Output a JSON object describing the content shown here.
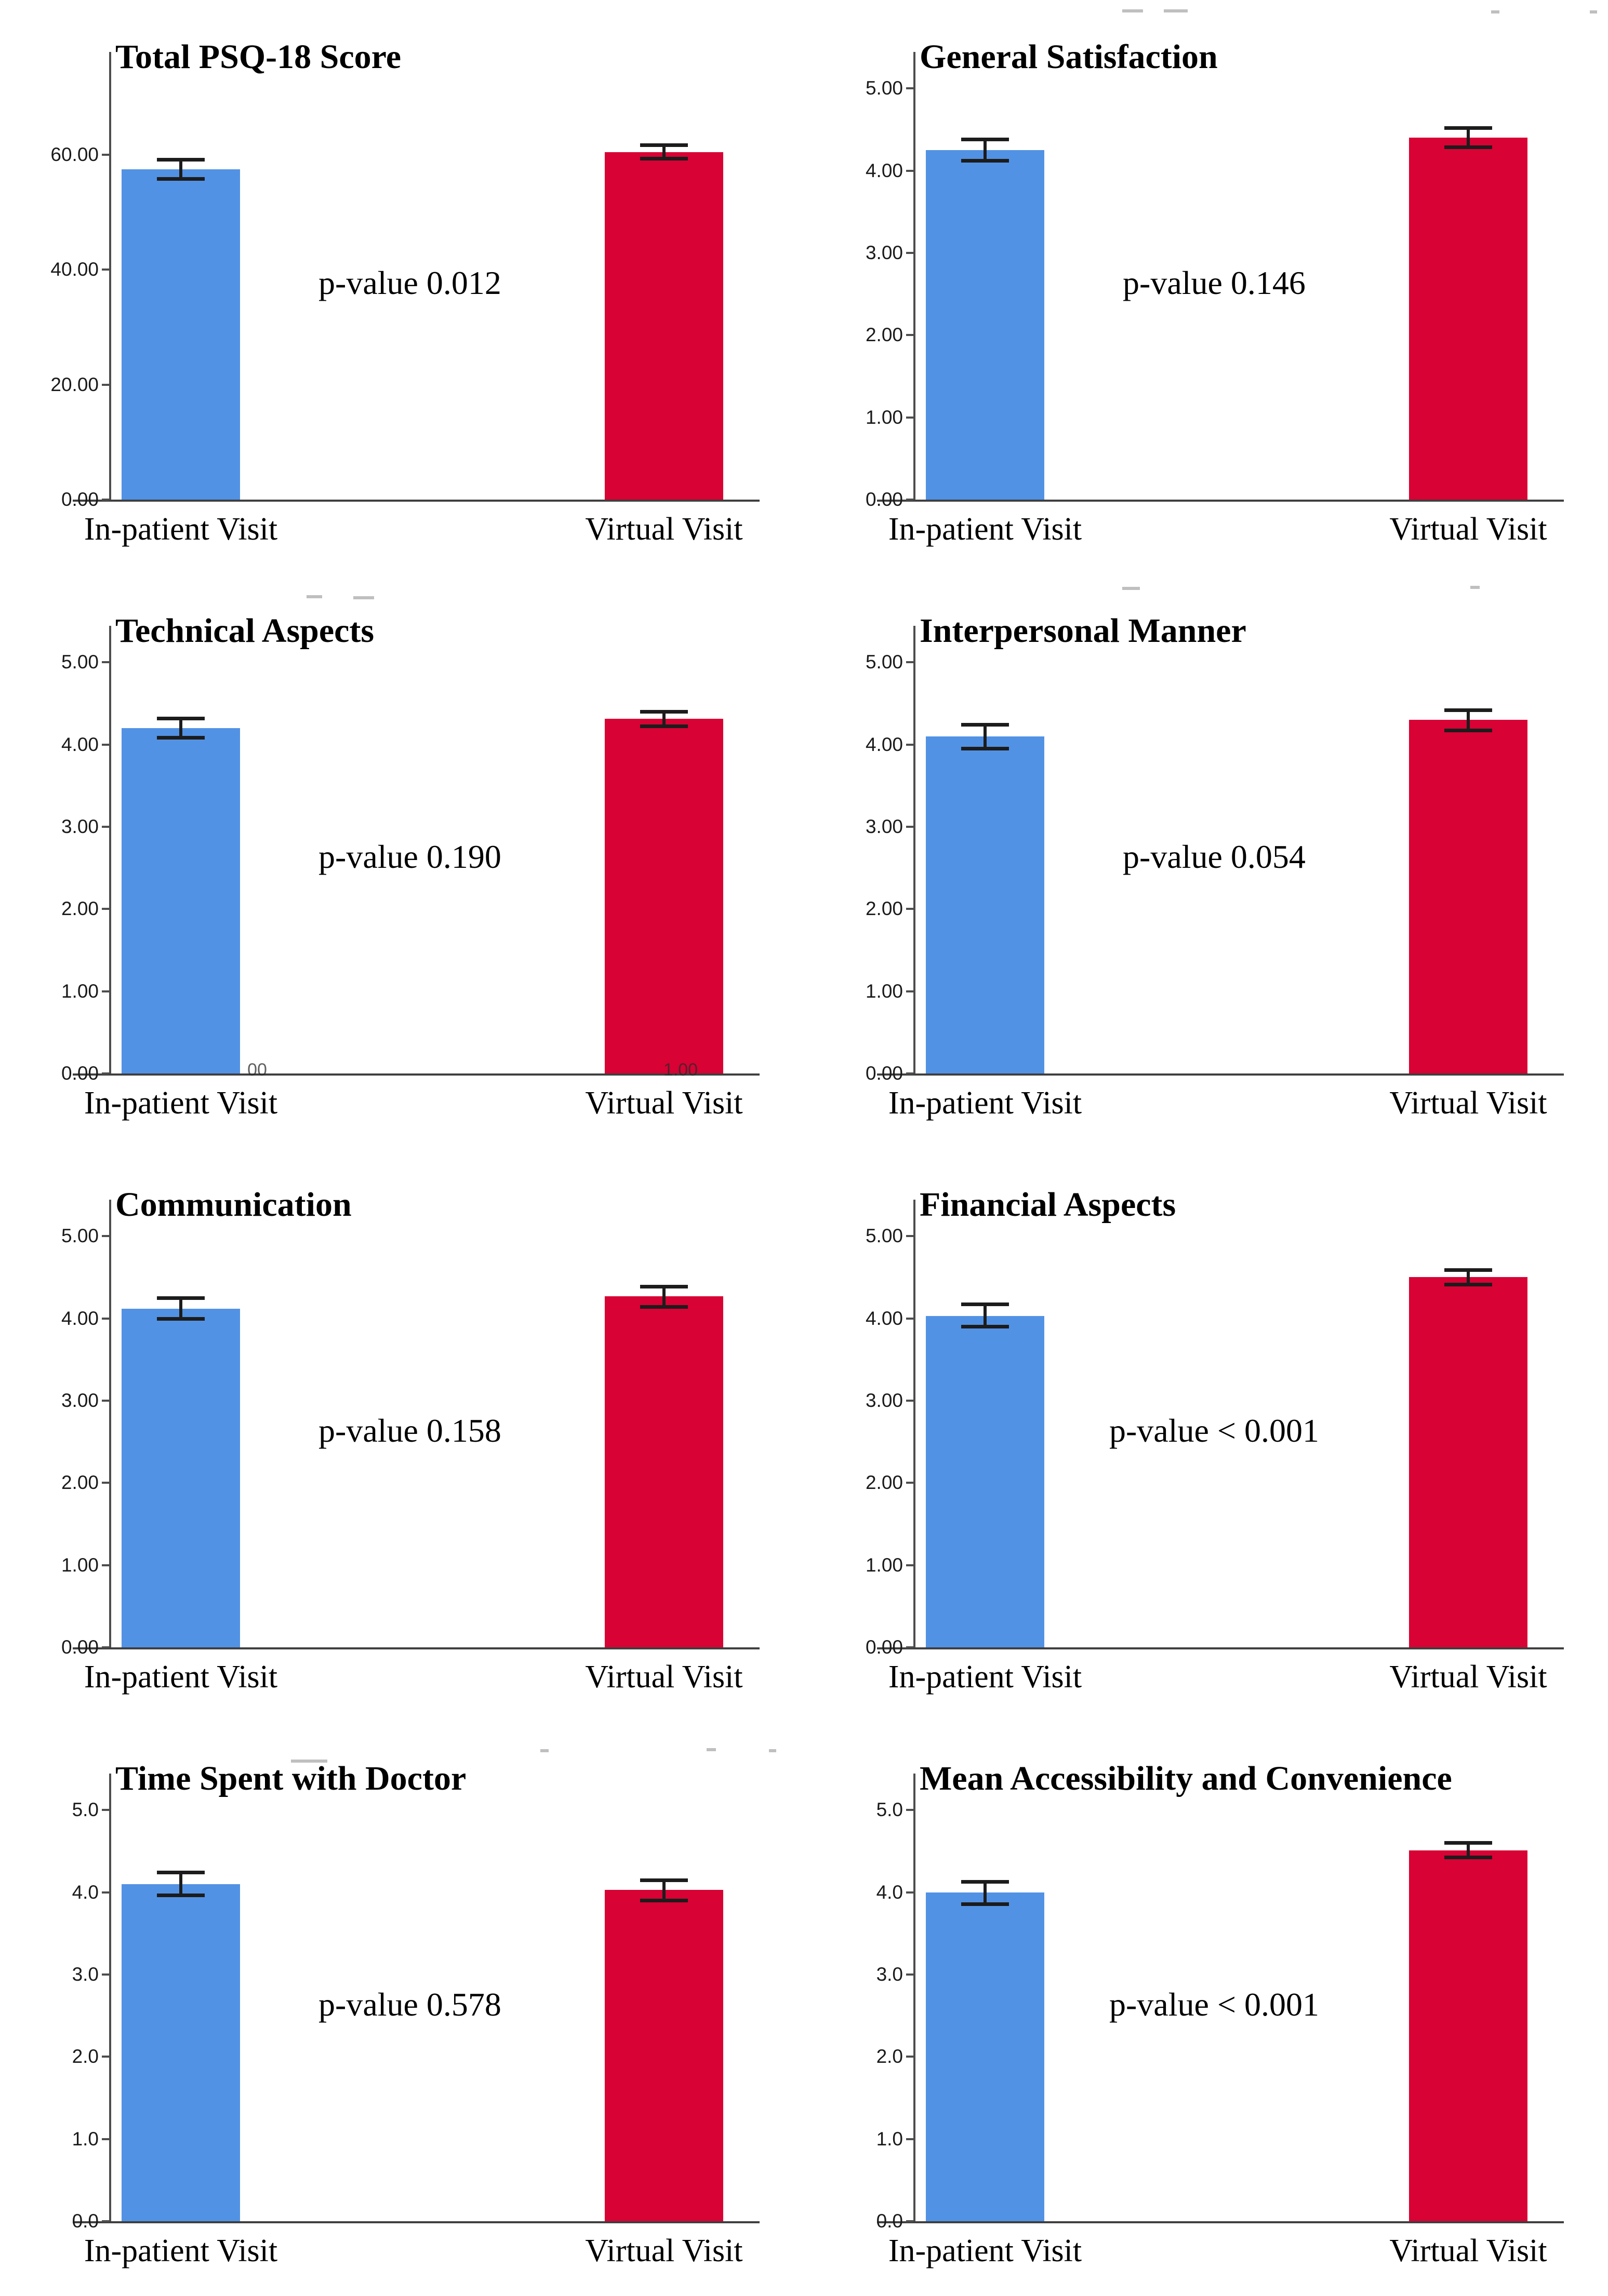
{
  "figure": {
    "categories": [
      "In-patient Visit",
      "Virtual Visit"
    ],
    "colors": {
      "inpatient_bar": "#5292E4",
      "virtual_bar": "#D80234",
      "error_bar": "#1c1c1c",
      "axis": "#4d4d4d"
    }
  },
  "chart_data": [
    {
      "type": "bar",
      "title": "Total PSQ-18 Score",
      "p_label": "p-value 0.012",
      "categories": [
        "In-patient Visit",
        "Virtual Visit"
      ],
      "series": [
        {
          "name": "In-patient Visit",
          "value": 57.5,
          "err_low": 55.5,
          "err_high": 59.5,
          "color": "#5292E4"
        },
        {
          "name": "Virtual Visit",
          "value": 60.5,
          "err_low": 59.0,
          "err_high": 62.0,
          "color": "#D80234"
        }
      ],
      "ylabel": "",
      "xlabel": "",
      "ylim": [
        0,
        77
      ],
      "grid": false,
      "legend": "none",
      "yticks": [
        {
          "v": 0,
          "label": "0.00"
        },
        {
          "v": 20,
          "label": "20.00"
        },
        {
          "v": 40,
          "label": "40.00"
        },
        {
          "v": 60,
          "label": "60.00"
        }
      ]
    },
    {
      "type": "bar",
      "title": "General Satisfaction",
      "p_label": "p-value 0.146",
      "categories": [
        "In-patient Visit",
        "Virtual Visit"
      ],
      "series": [
        {
          "name": "In-patient Visit",
          "value": 4.25,
          "err_low": 4.1,
          "err_high": 4.4,
          "color": "#5292E4"
        },
        {
          "name": "Virtual Visit",
          "value": 4.4,
          "err_low": 4.26,
          "err_high": 4.54,
          "color": "#D80234"
        }
      ],
      "ylabel": "",
      "xlabel": "",
      "ylim": [
        0,
        5.38
      ],
      "grid": false,
      "legend": "none",
      "yticks": [
        {
          "v": 0,
          "label": "0.00"
        },
        {
          "v": 1,
          "label": "1.00"
        },
        {
          "v": 2,
          "label": "2.00"
        },
        {
          "v": 3,
          "label": "3.00"
        },
        {
          "v": 4,
          "label": "4.00"
        },
        {
          "v": 5,
          "label": "5.00"
        }
      ]
    },
    {
      "type": "bar",
      "title": "Technical Aspects",
      "p_label": "p-value 0.190",
      "categories": [
        "In-patient Visit",
        "Virtual Visit"
      ],
      "series": [
        {
          "name": "In-patient Visit",
          "value": 4.2,
          "err_low": 4.06,
          "err_high": 4.34,
          "color": "#5292E4"
        },
        {
          "name": "Virtual Visit",
          "value": 4.31,
          "err_low": 4.2,
          "err_high": 4.42,
          "color": "#D80234"
        }
      ],
      "ylabel": "",
      "xlabel": "",
      "ylim": [
        0,
        5.38
      ],
      "grid": false,
      "legend": "none",
      "yticks": [
        {
          "v": 0,
          "label": "0.00"
        },
        {
          "v": 1,
          "label": "1.00"
        },
        {
          "v": 2,
          "label": "2.00"
        },
        {
          "v": 3,
          "label": "3.00"
        },
        {
          "v": 4,
          "label": "4.00"
        },
        {
          "v": 5,
          "label": "5.00"
        }
      ],
      "stray_labels": [
        {
          "text": "00",
          "x": 495
        },
        {
          "text": "1.00",
          "x": 1310
        }
      ]
    },
    {
      "type": "bar",
      "title": "Interpersonal Manner",
      "p_label": "p-value 0.054",
      "categories": [
        "In-patient Visit",
        "Virtual Visit"
      ],
      "series": [
        {
          "name": "In-patient Visit",
          "value": 4.1,
          "err_low": 3.93,
          "err_high": 4.26,
          "color": "#5292E4"
        },
        {
          "name": "Virtual Visit",
          "value": 4.3,
          "err_low": 4.15,
          "err_high": 4.44,
          "color": "#D80234"
        }
      ],
      "ylabel": "",
      "xlabel": "",
      "ylim": [
        0,
        5.38
      ],
      "grid": false,
      "legend": "none",
      "yticks": [
        {
          "v": 0,
          "label": "0.00"
        },
        {
          "v": 1,
          "label": "1.00"
        },
        {
          "v": 2,
          "label": "2.00"
        },
        {
          "v": 3,
          "label": "3.00"
        },
        {
          "v": 4,
          "label": "4.00"
        },
        {
          "v": 5,
          "label": "5.00"
        }
      ]
    },
    {
      "type": "bar",
      "title": "Communication",
      "p_label": "p-value 0.158",
      "categories": [
        "In-patient Visit",
        "Virtual Visit"
      ],
      "series": [
        {
          "name": "In-patient Visit",
          "value": 4.12,
          "err_low": 3.97,
          "err_high": 4.27,
          "color": "#5292E4"
        },
        {
          "name": "Virtual Visit",
          "value": 4.27,
          "err_low": 4.12,
          "err_high": 4.41,
          "color": "#D80234"
        }
      ],
      "ylabel": "",
      "xlabel": "",
      "ylim": [
        0,
        5.38
      ],
      "grid": false,
      "legend": "none",
      "yticks": [
        {
          "v": 0,
          "label": "0.00"
        },
        {
          "v": 1,
          "label": "1.00"
        },
        {
          "v": 2,
          "label": "2.00"
        },
        {
          "v": 3,
          "label": "3.00"
        },
        {
          "v": 4,
          "label": "4.00"
        },
        {
          "v": 5,
          "label": "5.00"
        }
      ]
    },
    {
      "type": "bar",
      "title": "Financial Aspects",
      "p_label": "p-value < 0.001",
      "categories": [
        "In-patient Visit",
        "Virtual Visit"
      ],
      "series": [
        {
          "name": "In-patient Visit",
          "value": 4.03,
          "err_low": 3.88,
          "err_high": 4.19,
          "color": "#5292E4"
        },
        {
          "name": "Virtual Visit",
          "value": 4.5,
          "err_low": 4.39,
          "err_high": 4.61,
          "color": "#D80234"
        }
      ],
      "ylabel": "",
      "xlabel": "",
      "ylim": [
        0,
        5.38
      ],
      "grid": false,
      "legend": "none",
      "yticks": [
        {
          "v": 0,
          "label": "0.00"
        },
        {
          "v": 1,
          "label": "1.00"
        },
        {
          "v": 2,
          "label": "2.00"
        },
        {
          "v": 3,
          "label": "3.00"
        },
        {
          "v": 4,
          "label": "4.00"
        },
        {
          "v": 5,
          "label": "5.00"
        }
      ]
    },
    {
      "type": "bar",
      "title": "Time Spent with Doctor",
      "p_label": "p-value 0.578",
      "categories": [
        "In-patient Visit",
        "Virtual Visit"
      ],
      "series": [
        {
          "name": "In-patient Visit",
          "value": 4.1,
          "err_low": 3.94,
          "err_high": 4.26,
          "color": "#5292E4"
        },
        {
          "name": "Virtual Visit",
          "value": 4.03,
          "err_low": 3.88,
          "err_high": 4.17,
          "color": "#D80234"
        }
      ],
      "ylabel": "",
      "xlabel": "",
      "ylim": [
        0,
        5.38
      ],
      "grid": false,
      "legend": "none",
      "yticks": [
        {
          "v": 0,
          "label": "0.0"
        },
        {
          "v": 1,
          "label": "1.0"
        },
        {
          "v": 2,
          "label": "2.0"
        },
        {
          "v": 3,
          "label": "3.0"
        },
        {
          "v": 4,
          "label": "4.0"
        },
        {
          "v": 5,
          "label": "5.0"
        }
      ]
    },
    {
      "type": "bar",
      "title": "Mean Accessibility and Convenience",
      "p_label": "p-value < 0.001",
      "categories": [
        "In-patient Visit",
        "Virtual Visit"
      ],
      "series": [
        {
          "name": "In-patient Visit",
          "value": 4.0,
          "err_low": 3.83,
          "err_high": 4.15,
          "color": "#5292E4"
        },
        {
          "name": "Virtual Visit",
          "value": 4.51,
          "err_low": 4.4,
          "err_high": 4.62,
          "color": "#D80234"
        }
      ],
      "ylabel": "",
      "xlabel": "",
      "ylim": [
        0,
        5.38
      ],
      "grid": false,
      "legend": "none",
      "yticks": [
        {
          "v": 0,
          "label": "0.0"
        },
        {
          "v": 1,
          "label": "1.0"
        },
        {
          "v": 2,
          "label": "2.0"
        },
        {
          "v": 3,
          "label": "3.0"
        },
        {
          "v": 4,
          "label": "4.0"
        },
        {
          "v": 5,
          "label": "5.0"
        }
      ]
    }
  ]
}
